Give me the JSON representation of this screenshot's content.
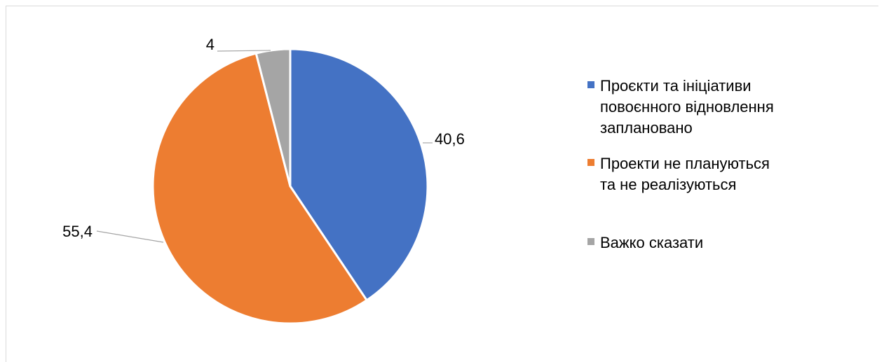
{
  "chart_data": {
    "type": "pie",
    "categories": [
      "Проєкти та ініціативи повоєнного відновлення заплановано",
      "Проекти не плануються та не реалізуються",
      "Важко сказати"
    ],
    "values": [
      40.6,
      55.4,
      4
    ],
    "value_labels": [
      "40,6",
      "55,4",
      "4"
    ],
    "colors": [
      "#4472c4",
      "#ed7d31",
      "#a5a5a5"
    ],
    "legend_position": "right",
    "title": ""
  },
  "legend": {
    "items": [
      {
        "label": "Проєкти та ініціативи\nповоєнного відновлення\nзаплановано",
        "color": "#4472c4"
      },
      {
        "label": "Проекти не плануються\nта не реалізуються",
        "color": "#ed7d31"
      },
      {
        "label": "Важко сказати",
        "color": "#a5a5a5"
      }
    ]
  }
}
